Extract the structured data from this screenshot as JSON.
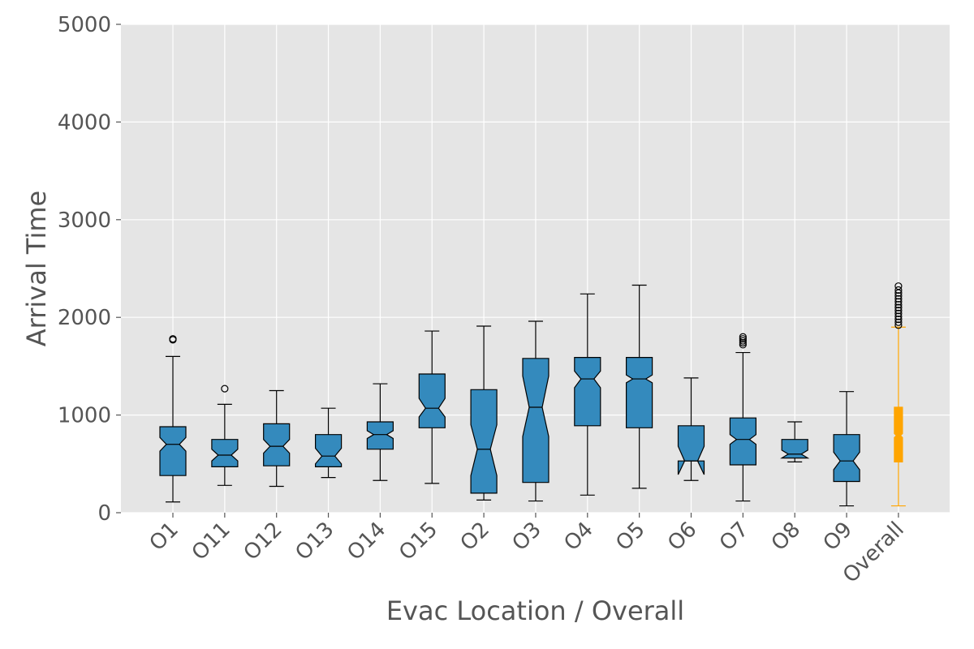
{
  "chart_data": {
    "type": "boxplot",
    "title": "",
    "xlabel": "Evac Location / Overall",
    "ylabel": "Arrival Time",
    "ylim": [
      0,
      5000
    ],
    "yticks": [
      0,
      1000,
      2000,
      3000,
      4000,
      5000
    ],
    "grid": true,
    "notched": true,
    "colors": {
      "box": "#348abd",
      "overall": "#ffa500",
      "plot_bg": "#e5e5e5",
      "grid": "#ffffff",
      "edge": "#000000"
    },
    "boxes": [
      {
        "label": "O1",
        "min": 110,
        "q1": 380,
        "median": 700,
        "q3": 880,
        "max": 1600,
        "notch_low": 630,
        "notch_high": 770,
        "outliers": [
          1770,
          1780
        ]
      },
      {
        "label": "O11",
        "min": 280,
        "q1": 470,
        "median": 590,
        "q3": 750,
        "max": 1110,
        "notch_low": 530,
        "notch_high": 650,
        "outliers": [
          1270
        ]
      },
      {
        "label": "O12",
        "min": 270,
        "q1": 480,
        "median": 680,
        "q3": 910,
        "max": 1250,
        "notch_low": 610,
        "notch_high": 750,
        "outliers": []
      },
      {
        "label": "O13",
        "min": 360,
        "q1": 470,
        "median": 580,
        "q3": 800,
        "max": 1070,
        "notch_low": 500,
        "notch_high": 660,
        "outliers": []
      },
      {
        "label": "O14",
        "min": 330,
        "q1": 650,
        "median": 800,
        "q3": 930,
        "max": 1320,
        "notch_low": 760,
        "notch_high": 840,
        "outliers": []
      },
      {
        "label": "O15",
        "min": 300,
        "q1": 870,
        "median": 1070,
        "q3": 1420,
        "max": 1860,
        "notch_low": 980,
        "notch_high": 1170,
        "outliers": []
      },
      {
        "label": "O2",
        "min": 130,
        "q1": 200,
        "median": 650,
        "q3": 1260,
        "max": 1910,
        "notch_low": 380,
        "notch_high": 900,
        "outliers": []
      },
      {
        "label": "O3",
        "min": 120,
        "q1": 310,
        "median": 1080,
        "q3": 1580,
        "max": 1960,
        "notch_low": 780,
        "notch_high": 1400,
        "outliers": []
      },
      {
        "label": "O4",
        "min": 180,
        "q1": 890,
        "median": 1370,
        "q3": 1590,
        "max": 2240,
        "notch_low": 1280,
        "notch_high": 1450,
        "outliers": []
      },
      {
        "label": "O5",
        "min": 250,
        "q1": 870,
        "median": 1370,
        "q3": 1590,
        "max": 2330,
        "notch_low": 1330,
        "notch_high": 1410,
        "outliers": []
      },
      {
        "label": "O6",
        "min": 330,
        "q1": 530,
        "median": 530,
        "q3": 890,
        "max": 1380,
        "notch_low": 390,
        "notch_high": 680,
        "outliers": []
      },
      {
        "label": "O7",
        "min": 120,
        "q1": 490,
        "median": 750,
        "q3": 970,
        "max": 1640,
        "notch_low": 700,
        "notch_high": 800,
        "outliers": [
          1720,
          1740,
          1760,
          1780,
          1800
        ]
      },
      {
        "label": "O8",
        "min": 520,
        "q1": 560,
        "median": 600,
        "q3": 750,
        "max": 930,
        "notch_low": 560,
        "notch_high": 640,
        "outliers": []
      },
      {
        "label": "O9",
        "min": 70,
        "q1": 320,
        "median": 530,
        "q3": 800,
        "max": 1240,
        "notch_low": 440,
        "notch_high": 620,
        "outliers": []
      },
      {
        "label": "Overall",
        "min": 70,
        "q1": 520,
        "median": 790,
        "q3": 1080,
        "max": 1900,
        "notch_low": 770,
        "notch_high": 810,
        "outliers": [
          1920,
          1950,
          1980,
          2010,
          2040,
          2070,
          2100,
          2130,
          2160,
          2190,
          2220,
          2250,
          2280,
          2320
        ]
      }
    ]
  }
}
